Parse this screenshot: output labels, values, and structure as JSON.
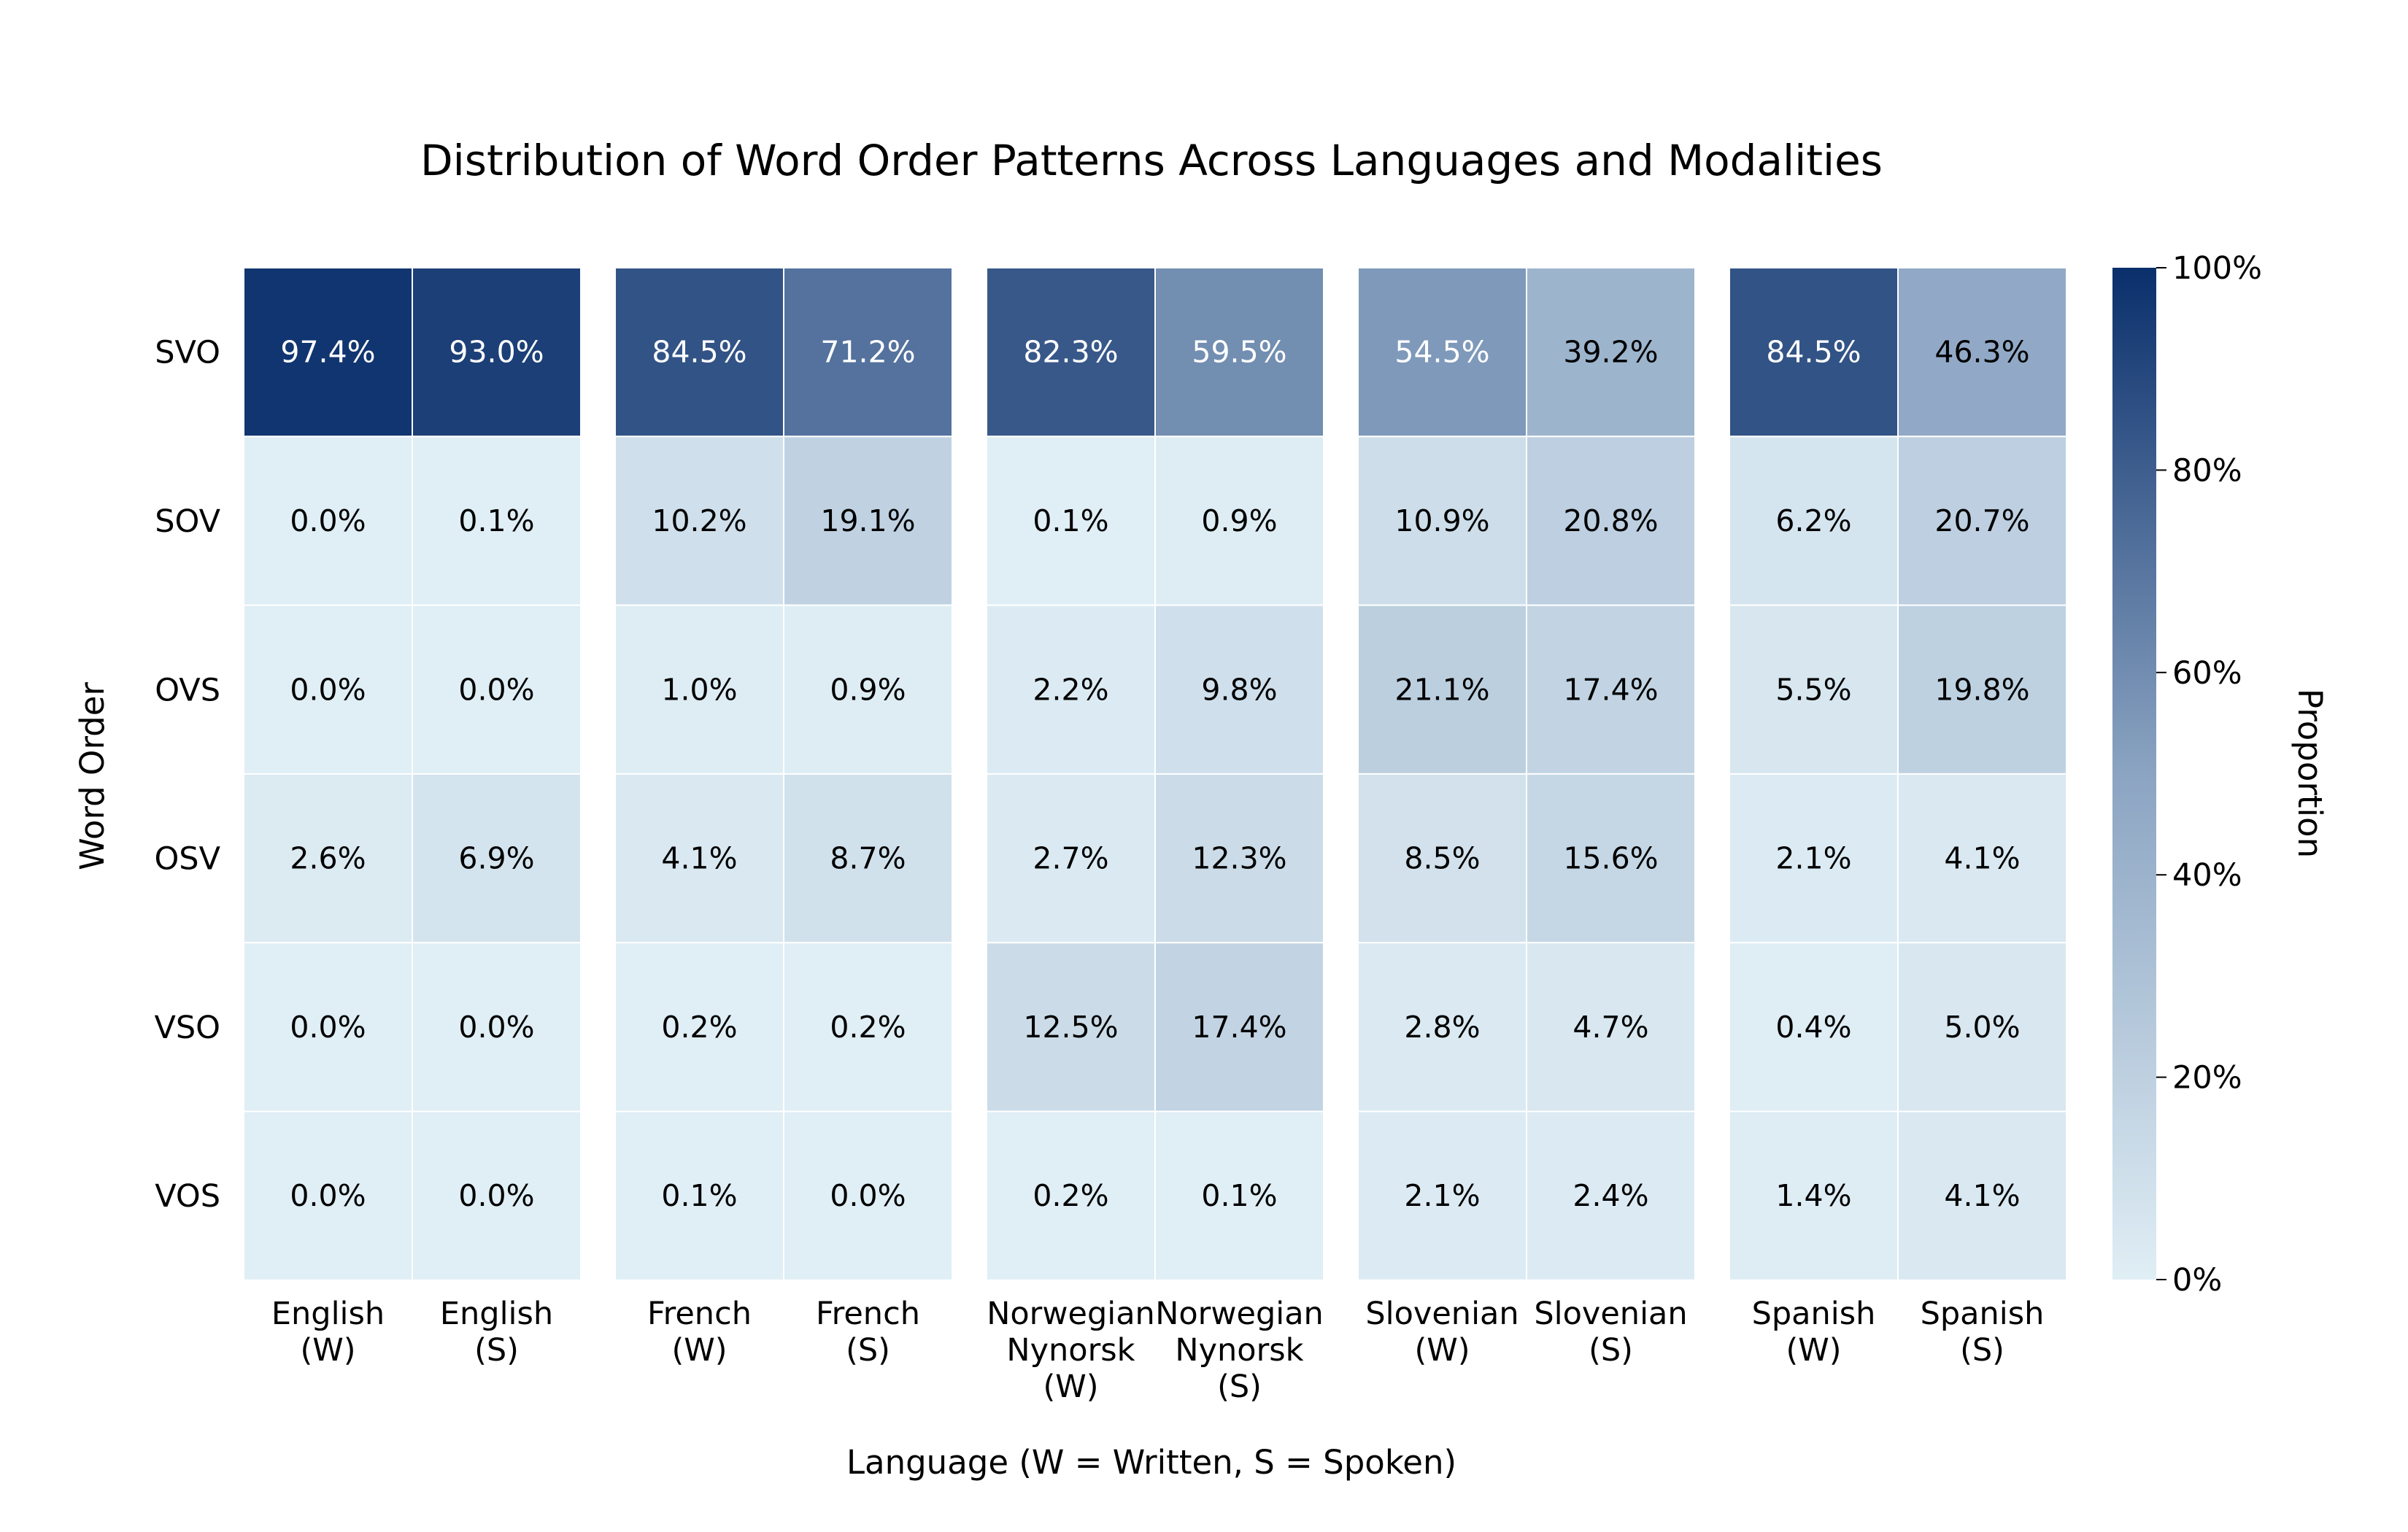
{
  "chart_data": {
    "type": "heatmap",
    "title": "Distribution of Word Order Patterns Across Languages and Modalities",
    "xlabel": "Language (W = Written, S = Spoken)",
    "ylabel": "Word Order",
    "rows": [
      "SVO",
      "SOV",
      "OVS",
      "OSV",
      "VSO",
      "VOS"
    ],
    "groups": [
      {
        "columns": [
          {
            "label": [
              "English",
              "(W)"
            ],
            "values": [
              97.4,
              0.0,
              0.0,
              2.6,
              0.0,
              0.0
            ]
          },
          {
            "label": [
              "English",
              "(S)"
            ],
            "values": [
              93.0,
              0.1,
              0.0,
              6.9,
              0.0,
              0.0
            ]
          }
        ]
      },
      {
        "columns": [
          {
            "label": [
              "French",
              "(W)"
            ],
            "values": [
              84.5,
              10.2,
              1.0,
              4.1,
              0.2,
              0.1
            ]
          },
          {
            "label": [
              "French",
              "(S)"
            ],
            "values": [
              71.2,
              19.1,
              0.9,
              8.7,
              0.2,
              0.0
            ]
          }
        ]
      },
      {
        "columns": [
          {
            "label": [
              "Norwegian",
              "Nynorsk",
              "(W)"
            ],
            "values": [
              82.3,
              0.1,
              2.2,
              2.7,
              12.5,
              0.2
            ]
          },
          {
            "label": [
              "Norwegian",
              "Nynorsk",
              "(S)"
            ],
            "values": [
              59.5,
              0.9,
              9.8,
              12.3,
              17.4,
              0.1
            ]
          }
        ]
      },
      {
        "columns": [
          {
            "label": [
              "Slovenian",
              "(W)"
            ],
            "values": [
              54.5,
              10.9,
              21.1,
              8.5,
              2.8,
              2.1
            ]
          },
          {
            "label": [
              "Slovenian",
              "(S)"
            ],
            "values": [
              39.2,
              20.8,
              17.4,
              15.6,
              4.7,
              2.4
            ]
          }
        ]
      },
      {
        "columns": [
          {
            "label": [
              "Spanish",
              "(W)"
            ],
            "values": [
              84.5,
              6.2,
              5.5,
              2.1,
              0.4,
              1.4
            ]
          },
          {
            "label": [
              "Spanish",
              "(S)"
            ],
            "values": [
              46.3,
              20.7,
              19.8,
              4.1,
              5.0,
              4.1
            ]
          }
        ]
      }
    ],
    "value_format": "percent-1-decimal",
    "colorbar": {
      "label": "Proportion",
      "range": [
        0,
        100
      ],
      "ticks": [
        "0%",
        "20%",
        "40%",
        "60%",
        "80%",
        "100%"
      ],
      "color_low": "#e0eef5",
      "color_mid": "#8ba4c2",
      "color_high": "#0a2f6b"
    },
    "grid": false,
    "legend": "none"
  }
}
